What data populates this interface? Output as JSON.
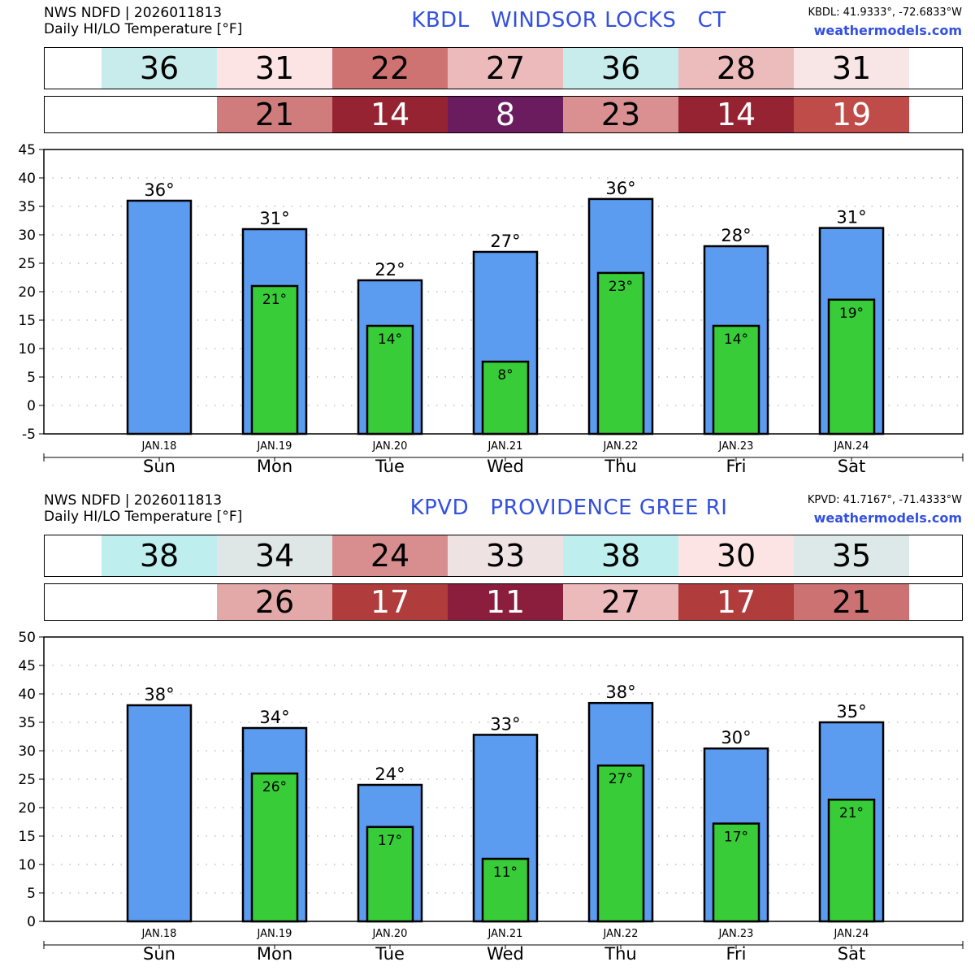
{
  "panels": [
    {
      "source_line": "NWS NDFD | 2026011813",
      "product_line": "Daily HI/LO Temperature [°F]",
      "station_title": "KBDL   WINDSOR LOCKS   CT",
      "coords": "KBDL: 41.9333°, -72.6833°W",
      "site": "weathermodels.com",
      "hi_strip": [
        {
          "value": "36",
          "bg": "#c8ecec",
          "fg": "#000000"
        },
        {
          "value": "31",
          "bg": "#fde4e4",
          "fg": "#000000"
        },
        {
          "value": "22",
          "bg": "#cf7272",
          "fg": "#000000"
        },
        {
          "value": "27",
          "bg": "#ecbaba",
          "fg": "#000000"
        },
        {
          "value": "36",
          "bg": "#c8ecec",
          "fg": "#000000"
        },
        {
          "value": "28",
          "bg": "#ecbcbc",
          "fg": "#000000"
        },
        {
          "value": "31",
          "bg": "#f8e6e6",
          "fg": "#000000"
        }
      ],
      "lo_strip": [
        {
          "value": "",
          "bg": "#ffffff",
          "fg": "#000000"
        },
        {
          "value": "21",
          "bg": "#d07c7c",
          "fg": "#000000"
        },
        {
          "value": "14",
          "bg": "#962332",
          "fg": "#ffffff"
        },
        {
          "value": "8",
          "bg": "#6b1c5e",
          "fg": "#ffffff"
        },
        {
          "value": "23",
          "bg": "#da9090",
          "fg": "#000000"
        },
        {
          "value": "14",
          "bg": "#962332",
          "fg": "#ffffff"
        },
        {
          "value": "19",
          "bg": "#c04c4a",
          "fg": "#ffffff"
        }
      ],
      "chart_data": {
        "type": "bar",
        "title": "Daily HI/LO Temperature [°F]",
        "categories": [
          "Sun",
          "Mon",
          "Tue",
          "Wed",
          "Thu",
          "Fri",
          "Sat"
        ],
        "dates": [
          "JAN.18",
          "JAN.19",
          "JAN.20",
          "JAN.21",
          "JAN.22",
          "JAN.23",
          "JAN.24"
        ],
        "series": [
          {
            "name": "HI",
            "color": "#5b9bf0",
            "values": [
              36,
              31,
              22,
              27,
              36.3,
              28,
              31.2
            ],
            "labels": [
              "36°",
              "31°",
              "22°",
              "27°",
              "36°",
              "28°",
              "31°"
            ]
          },
          {
            "name": "LO",
            "color": "#38cc38",
            "values": [
              null,
              21,
              14,
              7.7,
              23.3,
              14,
              18.6
            ],
            "labels": [
              "",
              "21°",
              "14°",
              "8°",
              "23°",
              "14°",
              "19°"
            ]
          }
        ],
        "ylim": [
          -5,
          45
        ],
        "yticks": [
          -5,
          0,
          5,
          10,
          15,
          20,
          25,
          30,
          35,
          40,
          45
        ],
        "grid": true
      }
    },
    {
      "source_line": "NWS NDFD | 2026011813",
      "product_line": "Daily HI/LO Temperature [°F]",
      "station_title": "KPVD   PROVIDENCE GREE RI",
      "coords": "KPVD: 41.7167°, -71.4333°W",
      "site": "weathermodels.com",
      "hi_strip": [
        {
          "value": "38",
          "bg": "#bfeeee",
          "fg": "#000000"
        },
        {
          "value": "34",
          "bg": "#dfe6e6",
          "fg": "#000000"
        },
        {
          "value": "24",
          "bg": "#d88e8e",
          "fg": "#000000"
        },
        {
          "value": "33",
          "bg": "#eee2e2",
          "fg": "#000000"
        },
        {
          "value": "38",
          "bg": "#bfeeee",
          "fg": "#000000"
        },
        {
          "value": "30",
          "bg": "#fde4e4",
          "fg": "#000000"
        },
        {
          "value": "35",
          "bg": "#dde8e8",
          "fg": "#000000"
        }
      ],
      "lo_strip": [
        {
          "value": "",
          "bg": "#ffffff",
          "fg": "#000000"
        },
        {
          "value": "26",
          "bg": "#e3a8a8",
          "fg": "#000000"
        },
        {
          "value": "17",
          "bg": "#b03c3c",
          "fg": "#ffffff"
        },
        {
          "value": "11",
          "bg": "#8a1e3c",
          "fg": "#ffffff"
        },
        {
          "value": "27",
          "bg": "#ecbaba",
          "fg": "#000000"
        },
        {
          "value": "17",
          "bg": "#b03c3c",
          "fg": "#ffffff"
        },
        {
          "value": "21",
          "bg": "#cd7272",
          "fg": "#000000"
        }
      ],
      "chart_data": {
        "type": "bar",
        "title": "Daily HI/LO Temperature [°F]",
        "categories": [
          "Sun",
          "Mon",
          "Tue",
          "Wed",
          "Thu",
          "Fri",
          "Sat"
        ],
        "dates": [
          "JAN.18",
          "JAN.19",
          "JAN.20",
          "JAN.21",
          "JAN.22",
          "JAN.23",
          "JAN.24"
        ],
        "series": [
          {
            "name": "HI",
            "color": "#5b9bf0",
            "values": [
              38,
              34,
              24,
              32.8,
              38.4,
              30.4,
              35
            ],
            "labels": [
              "38°",
              "34°",
              "24°",
              "33°",
              "38°",
              "30°",
              "35°"
            ]
          },
          {
            "name": "LO",
            "color": "#38cc38",
            "values": [
              null,
              26,
              16.6,
              11,
              27.4,
              17.2,
              21.4
            ],
            "labels": [
              "",
              "26°",
              "17°",
              "11°",
              "27°",
              "17°",
              "21°"
            ]
          }
        ],
        "ylim": [
          0,
          50
        ],
        "yticks": [
          0,
          5,
          10,
          15,
          20,
          25,
          30,
          35,
          40,
          45,
          50
        ],
        "grid": true
      }
    }
  ]
}
